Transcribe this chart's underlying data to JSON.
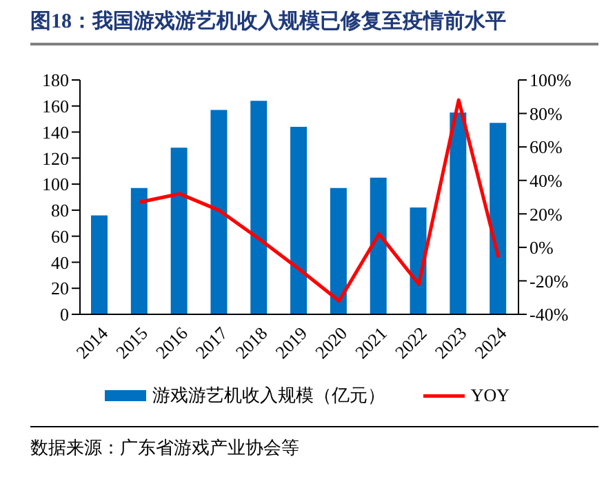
{
  "chart_data": {
    "type": "bar",
    "title": "图18：我国游戏游艺机收入规模已修复至疫情前水平",
    "categories": [
      "2014",
      "2015",
      "2016",
      "2017",
      "2018",
      "2019",
      "2020",
      "2021",
      "2022",
      "2023",
      "2024"
    ],
    "series": [
      {
        "name": "游戏游艺机收入规模（亿元）",
        "color": "#0070c0",
        "values": [
          76,
          97,
          128,
          157,
          164,
          144,
          97,
          105,
          82,
          155,
          147
        ]
      },
      {
        "name": "YOY",
        "type": "line",
        "axis": "y2",
        "color": "#ff0000",
        "values": [
          null,
          27,
          32,
          22,
          5,
          -13,
          -32,
          8,
          -22,
          88,
          -6
        ]
      }
    ],
    "ylim": [
      0,
      180
    ],
    "yticks": [
      0,
      20,
      40,
      60,
      80,
      100,
      120,
      140,
      160,
      180
    ],
    "y2lim": [
      -40,
      100
    ],
    "y2ticks": [
      {
        "value": -40,
        "label": "-40%"
      },
      {
        "value": -20,
        "label": "-20%"
      },
      {
        "value": 0,
        "label": "0%"
      },
      {
        "value": 20,
        "label": "20%"
      },
      {
        "value": 40,
        "label": "40%"
      },
      {
        "value": 60,
        "label": "60%"
      },
      {
        "value": 80,
        "label": "80%"
      },
      {
        "value": 100,
        "label": "100%"
      }
    ],
    "grid": false,
    "legend": "bottom",
    "annotations": [
      "数据来源：广东省游戏产业协会等"
    ]
  }
}
